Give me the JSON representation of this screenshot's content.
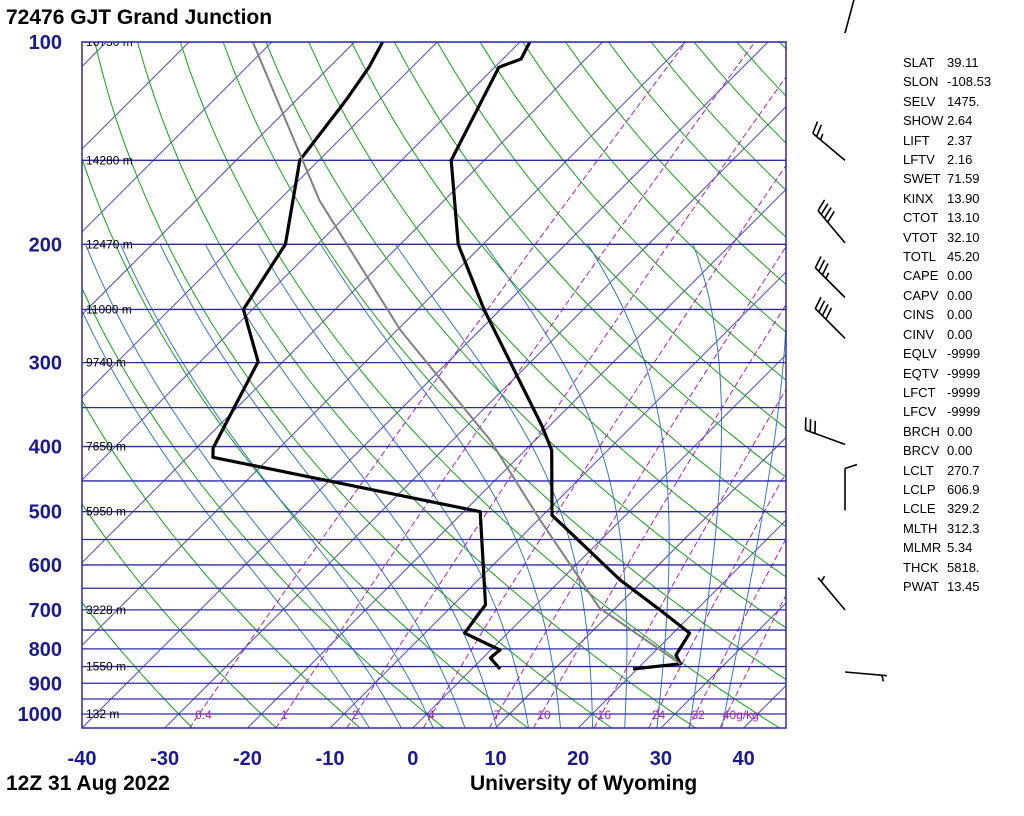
{
  "title": "72476 GJT Grand Junction",
  "footer": {
    "date": "12Z 31 Aug 2022",
    "source": "University of Wyoming"
  },
  "stats": [
    {
      "key": "SLAT",
      "value": "39.11"
    },
    {
      "key": "SLON",
      "value": "-108.53"
    },
    {
      "key": "SELV",
      "value": "1475."
    },
    {
      "key": "SHOW",
      "value": "2.64"
    },
    {
      "key": "LIFT",
      "value": "2.37"
    },
    {
      "key": "LFTV",
      "value": "2.16"
    },
    {
      "key": "SWET",
      "value": "71.59"
    },
    {
      "key": "KINX",
      "value": "13.90"
    },
    {
      "key": "CTOT",
      "value": "13.10"
    },
    {
      "key": "VTOT",
      "value": "32.10"
    },
    {
      "key": "TOTL",
      "value": "45.20"
    },
    {
      "key": "CAPE",
      "value": "0.00"
    },
    {
      "key": "CAPV",
      "value": "0.00"
    },
    {
      "key": "CINS",
      "value": "0.00"
    },
    {
      "key": "CINV",
      "value": "0.00"
    },
    {
      "key": "EQLV",
      "value": "-9999"
    },
    {
      "key": "EQTV",
      "value": "-9999"
    },
    {
      "key": "LFCT",
      "value": "-9999"
    },
    {
      "key": "LFCV",
      "value": "-9999"
    },
    {
      "key": "BRCH",
      "value": "0.00"
    },
    {
      "key": "BRCV",
      "value": "0.00"
    },
    {
      "key": "LCLT",
      "value": "270.7"
    },
    {
      "key": "LCLP",
      "value": "606.9"
    },
    {
      "key": "LCLE",
      "value": "329.2"
    },
    {
      "key": "MLTH",
      "value": "312.3"
    },
    {
      "key": "MLMR",
      "value": "5.34"
    },
    {
      "key": "THCK",
      "value": "5818."
    },
    {
      "key": "PWAT",
      "value": "13.45"
    }
  ],
  "chart_data": {
    "type": "line",
    "subtype": "skew-T log-P",
    "xlabel": "Temperature (°C)",
    "ylabel": "Pressure (hPa)",
    "xlim": [
      -40,
      45
    ],
    "ylim": [
      1050,
      100
    ],
    "x_ticks": [
      "-40",
      "-30",
      "-20",
      "-10",
      "0",
      "10",
      "20",
      "30",
      "40"
    ],
    "x_tick_values": [
      -40,
      -30,
      -20,
      -10,
      0,
      10,
      20,
      30,
      40
    ],
    "y_ticks": [
      "100",
      "200",
      "300",
      "400",
      "500",
      "600",
      "700",
      "800",
      "900",
      "1000"
    ],
    "y_tick_values": [
      100,
      200,
      300,
      400,
      500,
      600,
      700,
      800,
      900,
      1000
    ],
    "isobars": [
      100,
      150,
      200,
      250,
      300,
      350,
      400,
      450,
      500,
      550,
      600,
      650,
      700,
      750,
      800,
      850,
      900,
      950,
      1000,
      1050
    ],
    "height_labels": [
      {
        "p": 100,
        "label": "16730 m"
      },
      {
        "p": 150,
        "label": "14280 m"
      },
      {
        "p": 200,
        "label": "12470 m"
      },
      {
        "p": 250,
        "label": "11000 m"
      },
      {
        "p": 300,
        "label": "9740 m"
      },
      {
        "p": 400,
        "label": "7650 m"
      },
      {
        "p": 500,
        "label": "5950 m"
      },
      {
        "p": 700,
        "label": "3228 m"
      },
      {
        "p": 850,
        "label": "1550 m"
      },
      {
        "p": 1000,
        "label": "132 m"
      }
    ],
    "mixing_ratio_labels": [
      "0.4",
      "1",
      "2",
      "4",
      "7",
      "10",
      "16",
      "24",
      "32",
      "40g/kg"
    ],
    "mixing_ratio_values": [
      0.4,
      1,
      2,
      4,
      7,
      10,
      16,
      24,
      32,
      40
    ],
    "series": [
      {
        "name": "Temperature",
        "color": "#000000",
        "points": [
          [
            857,
            19.5
          ],
          [
            842,
            24.6
          ],
          [
            817,
            23
          ],
          [
            758,
            22
          ],
          [
            700,
            15.6
          ],
          [
            632,
            7.2
          ],
          [
            506,
            -8.9
          ],
          [
            405,
            -16.8
          ],
          [
            372,
            -21
          ],
          [
            250,
            -42
          ],
          [
            200,
            -53
          ],
          [
            150,
            -64
          ],
          [
            109,
            -69.5
          ],
          [
            106,
            -67.8
          ],
          [
            100,
            -68.8
          ]
        ]
      },
      {
        "name": "Dewpoint",
        "color": "#000000",
        "points": [
          [
            857,
            3.4
          ],
          [
            825,
            0.9
          ],
          [
            803,
            1.1
          ],
          [
            758,
            -5.2
          ],
          [
            705,
            -5.9
          ],
          [
            688,
            -6.1
          ],
          [
            500,
            -18
          ],
          [
            415,
            -56.9
          ],
          [
            402,
            -58
          ],
          [
            299,
            -63
          ],
          [
            250,
            -71.1
          ],
          [
            200,
            -73.9
          ],
          [
            150,
            -82.3
          ],
          [
            122,
            -84
          ],
          [
            109,
            -85.2
          ],
          [
            100,
            -86.6
          ]
        ]
      },
      {
        "name": "Parcel",
        "color": "#808080",
        "points": [
          [
            842,
            24.6
          ],
          [
            696,
            8.1
          ],
          [
            514,
            -9.8
          ],
          [
            391,
            -25.5
          ],
          [
            268,
            -49.7
          ],
          [
            172,
            -75.1
          ],
          [
            100,
            -102.3
          ]
        ]
      }
    ],
    "wind_barbs": [
      {
        "p": 97,
        "dir": 15,
        "spd": 5
      },
      {
        "p": 150,
        "dir": 310,
        "spd": 25
      },
      {
        "p": 199,
        "dir": 320,
        "spd": 40
      },
      {
        "p": 240,
        "dir": 315,
        "spd": 35
      },
      {
        "p": 276,
        "dir": 315,
        "spd": 40
      },
      {
        "p": 397,
        "dir": 290,
        "spd": 30
      },
      {
        "p": 498,
        "dir": 0,
        "spd": 10
      },
      {
        "p": 700,
        "dir": 320,
        "spd": 5
      },
      {
        "p": 866,
        "dir": 95,
        "spd": 5
      }
    ],
    "colors": {
      "axis": "#1a1a8c",
      "isobar": "#2a2aa8",
      "isotherm": "#4a4ab8",
      "dry_adiabat": "#16a016",
      "moist_adiabat": "#3a78b8",
      "mixing_ratio": "#b020b0",
      "parcel": "#808080"
    }
  }
}
